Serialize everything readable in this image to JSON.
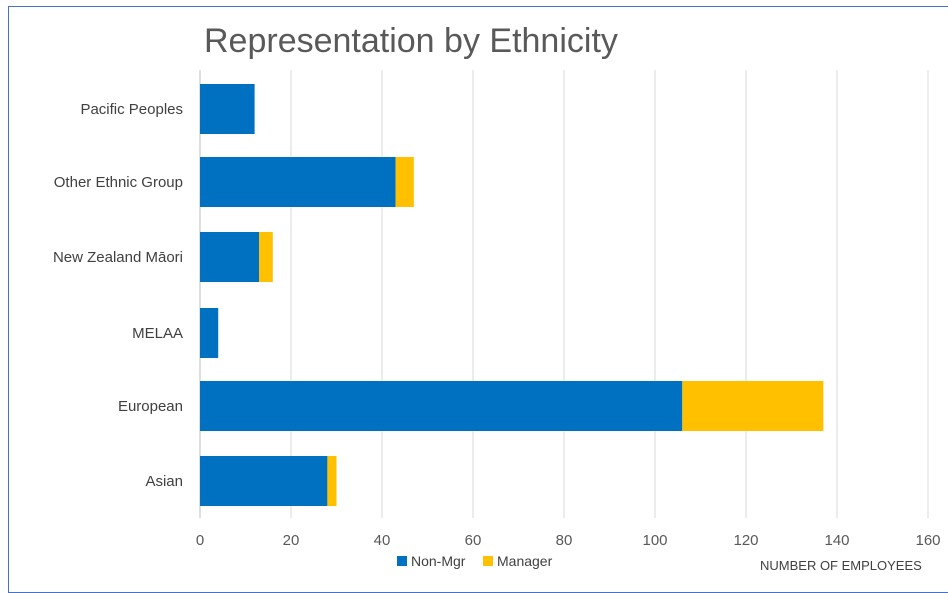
{
  "chart_data": {
    "type": "bar",
    "orientation": "horizontal",
    "stacked": true,
    "title": "Representation by Ethnicity",
    "xlabel": "NUMBER OF EMPLOYEES",
    "ylabel": "",
    "categories": [
      "Asian",
      "European",
      "MELAA",
      "New Zealand Māori",
      "Other Ethnic Group",
      "Pacific Peoples"
    ],
    "series": [
      {
        "name": "Non-Mgr",
        "color": "#0070c0",
        "values": [
          28,
          106,
          4,
          13,
          43,
          12
        ]
      },
      {
        "name": "Manager",
        "color": "#ffc000",
        "values": [
          2,
          31,
          0,
          3,
          4,
          0
        ]
      }
    ],
    "xlim": [
      0,
      160
    ],
    "xticks": [
      "0",
      "20",
      "40",
      "60",
      "80",
      "100",
      "120",
      "140",
      "160"
    ],
    "grid": true,
    "legend_position": "bottom"
  }
}
